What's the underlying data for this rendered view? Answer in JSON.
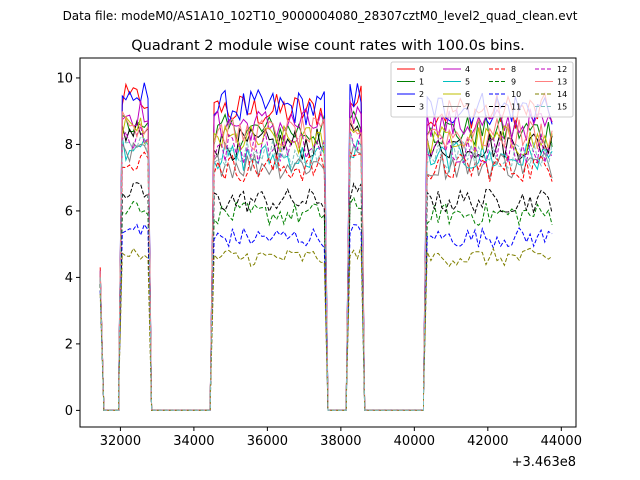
{
  "chart_data": {
    "type": "line",
    "suptitle": "Data file: modeM0/AS1A10_102T10_9000004080_28307cztM0_level2_quad_clean.evt",
    "title": "Quadrant 2 module wise count rates with 100.0s bins.",
    "xlabel": "",
    "ylabel": "",
    "x_offset_label": "+3.463e8",
    "xlim": [
      30900,
      44400
    ],
    "ylim": [
      -0.5,
      10.6
    ],
    "x_ticks": [
      32000,
      34000,
      36000,
      38000,
      40000,
      42000,
      44000
    ],
    "x_tick_labels": [
      "32000",
      "34000",
      "36000",
      "38000",
      "40000",
      "42000",
      "44000"
    ],
    "y_ticks": [
      0,
      2,
      4,
      6,
      8,
      10
    ],
    "y_tick_labels": [
      "0",
      "2",
      "4",
      "6",
      "8",
      "10"
    ],
    "grid": false,
    "legend_placement": "top-right",
    "segments": [
      {
        "start": 31450,
        "end": 31550,
        "type": "decay_start"
      },
      {
        "start": 31550,
        "end": 31950,
        "type": "gap"
      },
      {
        "start": 31950,
        "end": 32750,
        "type": "active"
      },
      {
        "start": 32750,
        "end": 32850,
        "type": "drop"
      },
      {
        "start": 32850,
        "end": 34450,
        "type": "gap"
      },
      {
        "start": 34450,
        "end": 37550,
        "type": "active"
      },
      {
        "start": 37550,
        "end": 37650,
        "type": "drop"
      },
      {
        "start": 37650,
        "end": 38150,
        "type": "gap"
      },
      {
        "start": 38150,
        "end": 38550,
        "type": "active"
      },
      {
        "start": 38550,
        "end": 38650,
        "type": "drop"
      },
      {
        "start": 38650,
        "end": 40250,
        "type": "gap"
      },
      {
        "start": 40250,
        "end": 43750,
        "type": "active"
      }
    ],
    "bin_width": 100,
    "series": [
      {
        "name": "0",
        "color": "#ff0000",
        "dash": "solid",
        "level": 9.0,
        "start_value": 4.3
      },
      {
        "name": "1",
        "color": "#008000",
        "dash": "solid",
        "level": 8.4,
        "start_value": 4.2
      },
      {
        "name": "2",
        "color": "#0000ff",
        "dash": "solid",
        "level": 9.1,
        "start_value": 4.2
      },
      {
        "name": "3",
        "color": "#000000",
        "dash": "solid",
        "level": 8.0,
        "start_value": 4.1
      },
      {
        "name": "4",
        "color": "#bf00bf",
        "dash": "solid",
        "level": 8.6,
        "start_value": 4.2
      },
      {
        "name": "5",
        "color": "#00bfbf",
        "dash": "solid",
        "level": 7.6,
        "start_value": 4.0
      },
      {
        "name": "6",
        "color": "#bfbf00",
        "dash": "solid",
        "level": 8.1,
        "start_value": 4.1
      },
      {
        "name": "7",
        "color": "#808080",
        "dash": "solid",
        "level": 7.4,
        "start_value": 4.0
      },
      {
        "name": "8",
        "color": "#ff0000",
        "dash": "dashed",
        "level": 7.3,
        "start_value": 4.0
      },
      {
        "name": "9",
        "color": "#008000",
        "dash": "dashed",
        "level": 5.9,
        "start_value": 3.8
      },
      {
        "name": "10",
        "color": "#0000ff",
        "dash": "dashed",
        "level": 5.2,
        "start_value": 3.6
      },
      {
        "name": "11",
        "color": "#000000",
        "dash": "dashed",
        "level": 6.3,
        "start_value": 3.8
      },
      {
        "name": "12",
        "color": "#bf00bf",
        "dash": "dashed",
        "level": 7.9,
        "start_value": 4.1
      },
      {
        "name": "13",
        "color": "#ff8080",
        "dash": "solid",
        "level": 8.3,
        "start_value": 4.2
      },
      {
        "name": "14",
        "color": "#808000",
        "dash": "dashed",
        "level": 4.6,
        "start_value": 3.5
      },
      {
        "name": "15",
        "color": "#80c0c0",
        "dash": "dashed",
        "level": 7.7,
        "start_value": 4.0
      }
    ]
  }
}
